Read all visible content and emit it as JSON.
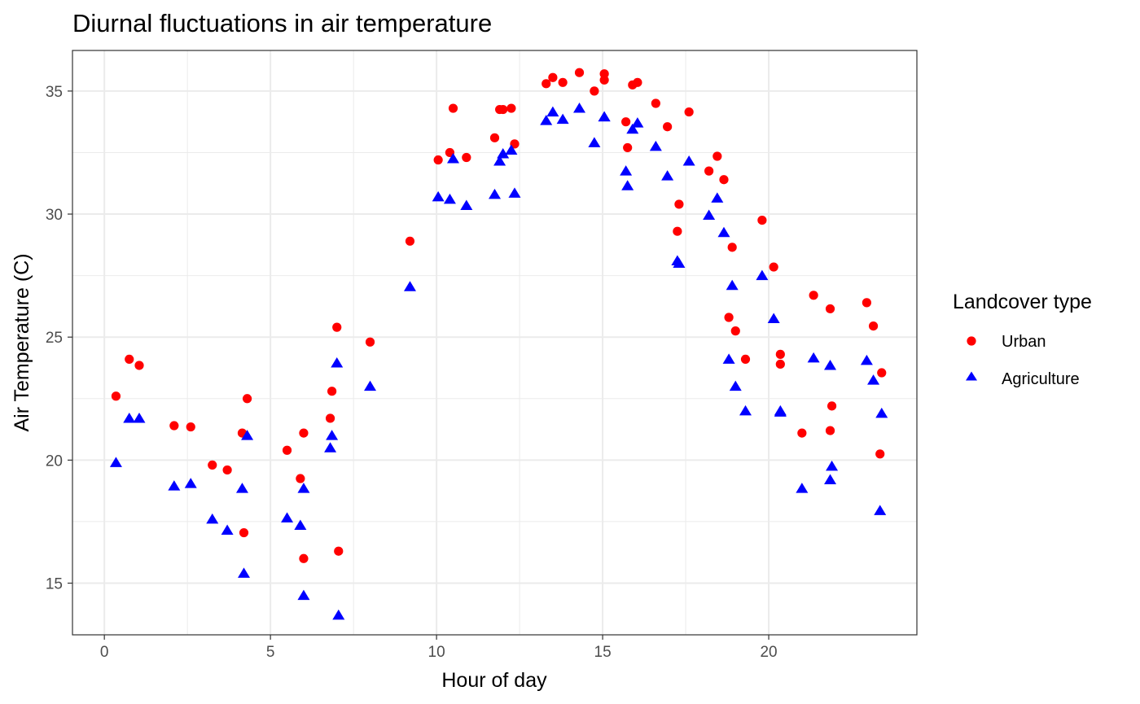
{
  "chart_data": {
    "type": "scatter",
    "title": "Diurnal fluctuations in air temperature",
    "xlabel": "Hour of day",
    "ylabel": "Air Temperature (C)",
    "xlim": [
      -0.96,
      24.46
    ],
    "ylim": [
      12.9,
      36.65
    ],
    "xticks": [
      0,
      5,
      10,
      15,
      20
    ],
    "yticks": [
      15,
      20,
      25,
      30,
      35
    ],
    "grid": true,
    "legend": {
      "title": "Landcover type",
      "position": "right"
    },
    "series": [
      {
        "name": "Urban",
        "color": "#ff0000",
        "marker": "circle",
        "points": [
          [
            0.35,
            22.6
          ],
          [
            0.75,
            24.1
          ],
          [
            1.05,
            23.85
          ],
          [
            2.1,
            21.4
          ],
          [
            2.6,
            21.35
          ],
          [
            3.25,
            19.8
          ],
          [
            3.7,
            19.6
          ],
          [
            4.15,
            21.1
          ],
          [
            4.2,
            17.05
          ],
          [
            4.3,
            22.5
          ],
          [
            5.5,
            20.4
          ],
          [
            5.9,
            19.25
          ],
          [
            6.0,
            21.1
          ],
          [
            6.0,
            16.0
          ],
          [
            6.8,
            21.7
          ],
          [
            6.85,
            22.8
          ],
          [
            7.0,
            25.4
          ],
          [
            7.05,
            16.3
          ],
          [
            8.0,
            24.8
          ],
          [
            9.2,
            28.9
          ],
          [
            10.05,
            32.2
          ],
          [
            10.4,
            32.5
          ],
          [
            10.5,
            34.3
          ],
          [
            10.9,
            32.3
          ],
          [
            11.75,
            33.1
          ],
          [
            11.9,
            34.25
          ],
          [
            12.0,
            34.25
          ],
          [
            12.25,
            34.3
          ],
          [
            12.35,
            32.85
          ],
          [
            13.3,
            35.3
          ],
          [
            13.5,
            35.55
          ],
          [
            13.8,
            35.35
          ],
          [
            14.3,
            35.75
          ],
          [
            14.75,
            35.0
          ],
          [
            15.05,
            35.7
          ],
          [
            15.05,
            35.45
          ],
          [
            15.7,
            33.75
          ],
          [
            15.75,
            32.7
          ],
          [
            15.9,
            35.25
          ],
          [
            16.05,
            35.35
          ],
          [
            16.6,
            34.5
          ],
          [
            16.95,
            33.55
          ],
          [
            17.25,
            29.3
          ],
          [
            17.3,
            30.4
          ],
          [
            17.6,
            34.15
          ],
          [
            18.2,
            31.75
          ],
          [
            18.45,
            32.35
          ],
          [
            18.65,
            31.4
          ],
          [
            18.8,
            25.8
          ],
          [
            18.9,
            28.65
          ],
          [
            19.0,
            25.25
          ],
          [
            19.3,
            24.1
          ],
          [
            19.8,
            29.75
          ],
          [
            20.15,
            27.85
          ],
          [
            20.35,
            24.3
          ],
          [
            20.35,
            23.9
          ],
          [
            21.0,
            21.1
          ],
          [
            21.35,
            26.7
          ],
          [
            21.85,
            26.15
          ],
          [
            21.85,
            21.2
          ],
          [
            21.9,
            22.2
          ],
          [
            22.95,
            26.4
          ],
          [
            23.15,
            25.45
          ],
          [
            23.35,
            20.25
          ],
          [
            23.4,
            23.55
          ]
        ]
      },
      {
        "name": "Agriculture",
        "color": "#0000ff",
        "marker": "triangle",
        "points": [
          [
            0.35,
            19.9
          ],
          [
            0.75,
            21.7
          ],
          [
            1.05,
            21.7
          ],
          [
            2.1,
            18.95
          ],
          [
            2.6,
            19.05
          ],
          [
            3.25,
            17.6
          ],
          [
            3.7,
            17.15
          ],
          [
            4.15,
            18.85
          ],
          [
            4.2,
            15.4
          ],
          [
            4.3,
            21.0
          ],
          [
            5.5,
            17.65
          ],
          [
            5.9,
            17.35
          ],
          [
            6.0,
            18.85
          ],
          [
            6.0,
            14.5
          ],
          [
            6.8,
            20.5
          ],
          [
            6.85,
            21.0
          ],
          [
            7.0,
            23.95
          ],
          [
            7.05,
            13.7
          ],
          [
            8.0,
            23.0
          ],
          [
            9.2,
            27.05
          ],
          [
            10.05,
            30.7
          ],
          [
            10.4,
            30.6
          ],
          [
            10.5,
            32.25
          ],
          [
            10.9,
            30.35
          ],
          [
            11.75,
            30.8
          ],
          [
            11.9,
            32.15
          ],
          [
            12.0,
            32.45
          ],
          [
            12.25,
            32.6
          ],
          [
            12.35,
            30.85
          ],
          [
            13.3,
            33.8
          ],
          [
            13.5,
            34.15
          ],
          [
            13.8,
            33.85
          ],
          [
            14.3,
            34.3
          ],
          [
            14.75,
            32.9
          ],
          [
            15.05,
            33.95
          ],
          [
            15.05,
            33.95
          ],
          [
            15.7,
            31.75
          ],
          [
            15.75,
            31.15
          ],
          [
            15.9,
            33.45
          ],
          [
            16.05,
            33.7
          ],
          [
            16.6,
            32.75
          ],
          [
            16.95,
            31.55
          ],
          [
            17.25,
            28.1
          ],
          [
            17.3,
            28.0
          ],
          [
            17.6,
            32.15
          ],
          [
            18.2,
            29.95
          ],
          [
            18.45,
            30.65
          ],
          [
            18.65,
            29.25
          ],
          [
            18.8,
            24.1
          ],
          [
            18.9,
            27.1
          ],
          [
            19.0,
            23.0
          ],
          [
            19.3,
            22.0
          ],
          [
            19.8,
            27.5
          ],
          [
            20.15,
            25.75
          ],
          [
            20.35,
            22.0
          ],
          [
            20.35,
            21.95
          ],
          [
            21.0,
            18.85
          ],
          [
            21.35,
            24.15
          ],
          [
            21.85,
            23.85
          ],
          [
            21.85,
            19.2
          ],
          [
            21.9,
            19.75
          ],
          [
            22.95,
            24.05
          ],
          [
            23.15,
            23.25
          ],
          [
            23.35,
            17.95
          ],
          [
            23.4,
            21.9
          ]
        ]
      }
    ]
  }
}
